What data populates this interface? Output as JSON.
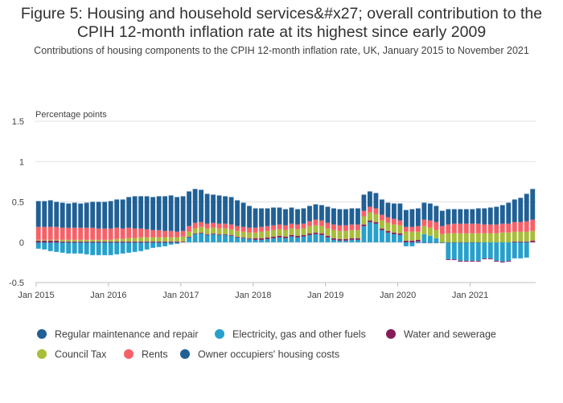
{
  "title": "Figure 5: Housing and household services&#x27; overall contribution to the CPIH 12-month inflation rate at its highest since early 2009",
  "subtitle": "Contributions of housing components to the CPIH 12-month inflation rate, UK, January 2015 to November 2021",
  "chart_data": {
    "type": "bar",
    "stacked": true,
    "ylabel": "Percentage points",
    "ylim": [
      -0.5,
      1.5
    ],
    "yticks": [
      -0.5,
      0,
      0.5,
      1,
      1.5
    ],
    "ytick_labels": [
      "-0.5",
      "0",
      "0.5",
      "1",
      "1.5"
    ],
    "xtick_labels": [
      "Jan 2015",
      "Jan 2016",
      "Jan 2017",
      "Jan 2018",
      "Jan 2019",
      "Jan 2020",
      "Jan 2021"
    ],
    "xtick_indices": [
      0,
      12,
      24,
      36,
      48,
      60,
      72
    ],
    "grid": true,
    "legend_position": "bottom",
    "start": "2015-01",
    "period_count": 83,
    "series": [
      {
        "name": "Regular maintenance and repair",
        "color": "#206095",
        "values": [
          -0.01,
          -0.01,
          -0.01,
          -0.01,
          -0.01,
          -0.01,
          -0.01,
          -0.01,
          -0.01,
          -0.01,
          -0.01,
          -0.01,
          -0.01,
          -0.01,
          -0.01,
          -0.01,
          -0.01,
          -0.01,
          -0.01,
          -0.01,
          -0.01,
          -0.01,
          -0.01,
          -0.01,
          0.0,
          0.0,
          0.0,
          0.0,
          0.0,
          0.0,
          0.0,
          0.0,
          0.0,
          0.0,
          0.0,
          0.0,
          0.0,
          0.0,
          0.0,
          0.0,
          0.0,
          0.0,
          0.0,
          0.0,
          0.0,
          0.0,
          0.0,
          0.0,
          0.0,
          0.0,
          0.0,
          0.0,
          0.0,
          0.0,
          0.0,
          0.0,
          0.0,
          0.0,
          0.0,
          0.0,
          0.0,
          0.0,
          0.0,
          -0.01,
          -0.01,
          -0.01,
          -0.01,
          -0.01,
          -0.01,
          -0.01,
          -0.01,
          -0.01,
          -0.01,
          -0.01,
          0.0,
          0.0,
          0.0,
          0.0,
          0.0,
          0.0,
          0.0,
          0.0,
          0.0
        ]
      },
      {
        "name": "Electricity, gas and other fuels",
        "color": "#27a0cc",
        "values": [
          -0.07,
          -0.08,
          -0.1,
          -0.11,
          -0.12,
          -0.13,
          -0.13,
          -0.13,
          -0.14,
          -0.15,
          -0.15,
          -0.15,
          -0.15,
          -0.14,
          -0.13,
          -0.12,
          -0.11,
          -0.1,
          -0.08,
          -0.06,
          -0.05,
          -0.04,
          -0.02,
          -0.01,
          0.0,
          0.06,
          0.1,
          0.11,
          0.09,
          0.1,
          0.09,
          0.09,
          0.08,
          0.06,
          0.05,
          0.04,
          0.03,
          0.03,
          0.04,
          0.05,
          0.06,
          0.05,
          0.07,
          0.06,
          0.07,
          0.09,
          0.1,
          0.09,
          0.06,
          0.03,
          0.02,
          0.02,
          0.03,
          0.03,
          0.2,
          0.25,
          0.23,
          0.15,
          0.12,
          0.1,
          0.09,
          -0.05,
          -0.05,
          0.01,
          0.1,
          0.08,
          0.05,
          0.0,
          -0.2,
          -0.2,
          -0.22,
          -0.22,
          -0.22,
          -0.22,
          -0.2,
          -0.2,
          -0.23,
          -0.24,
          -0.23,
          -0.2,
          -0.2,
          -0.19,
          0.0
        ]
      },
      {
        "name": "Water and sewerage",
        "color": "#871a5b",
        "values": [
          0.02,
          0.02,
          0.02,
          0.02,
          0.01,
          0.01,
          0.01,
          0.01,
          0.01,
          0.01,
          0.01,
          0.01,
          0.01,
          0.01,
          0.01,
          0.01,
          0.01,
          0.01,
          0.01,
          0.01,
          0.01,
          0.01,
          0.01,
          0.01,
          0.01,
          0.01,
          0.01,
          0.01,
          0.01,
          0.01,
          0.01,
          0.01,
          0.01,
          0.01,
          0.01,
          0.01,
          0.02,
          0.02,
          0.02,
          0.02,
          0.02,
          0.02,
          0.02,
          0.02,
          0.02,
          0.02,
          0.02,
          0.02,
          0.02,
          0.02,
          0.02,
          0.02,
          0.02,
          0.02,
          0.02,
          0.02,
          0.02,
          0.02,
          0.02,
          0.02,
          0.02,
          0.02,
          0.02,
          0.02,
          0.0,
          0.0,
          0.0,
          0.0,
          -0.01,
          -0.01,
          -0.01,
          -0.01,
          -0.01,
          -0.01,
          -0.01,
          -0.01,
          -0.01,
          -0.01,
          -0.01,
          0.01,
          0.01,
          0.01,
          0.02
        ]
      },
      {
        "name": "Council Tax",
        "color": "#a8bd3a",
        "values": [
          0.01,
          0.01,
          0.01,
          0.01,
          0.02,
          0.02,
          0.02,
          0.02,
          0.02,
          0.02,
          0.02,
          0.02,
          0.02,
          0.03,
          0.03,
          0.04,
          0.04,
          0.05,
          0.05,
          0.05,
          0.05,
          0.05,
          0.05,
          0.05,
          0.06,
          0.06,
          0.06,
          0.07,
          0.07,
          0.07,
          0.07,
          0.07,
          0.07,
          0.07,
          0.07,
          0.07,
          0.07,
          0.08,
          0.08,
          0.08,
          0.08,
          0.08,
          0.08,
          0.08,
          0.08,
          0.09,
          0.09,
          0.09,
          0.09,
          0.1,
          0.1,
          0.1,
          0.1,
          0.1,
          0.1,
          0.1,
          0.1,
          0.1,
          0.1,
          0.1,
          0.1,
          0.11,
          0.11,
          0.1,
          0.1,
          0.1,
          0.1,
          0.1,
          0.11,
          0.11,
          0.11,
          0.11,
          0.11,
          0.11,
          0.11,
          0.11,
          0.11,
          0.12,
          0.12,
          0.12,
          0.12,
          0.12,
          0.12
        ]
      },
      {
        "name": "Rents",
        "color": "#f66068",
        "values": [
          0.16,
          0.16,
          0.16,
          0.16,
          0.15,
          0.15,
          0.15,
          0.15,
          0.15,
          0.15,
          0.14,
          0.14,
          0.14,
          0.14,
          0.13,
          0.13,
          0.12,
          0.11,
          0.1,
          0.09,
          0.09,
          0.08,
          0.08,
          0.07,
          0.07,
          0.07,
          0.07,
          0.06,
          0.06,
          0.06,
          0.06,
          0.06,
          0.06,
          0.06,
          0.06,
          0.06,
          0.06,
          0.06,
          0.06,
          0.06,
          0.06,
          0.06,
          0.06,
          0.06,
          0.06,
          0.06,
          0.07,
          0.07,
          0.07,
          0.07,
          0.07,
          0.07,
          0.07,
          0.07,
          0.07,
          0.07,
          0.07,
          0.07,
          0.07,
          0.07,
          0.06,
          0.06,
          0.06,
          0.07,
          0.08,
          0.09,
          0.1,
          0.1,
          0.11,
          0.12,
          0.12,
          0.12,
          0.12,
          0.12,
          0.11,
          0.11,
          0.11,
          0.11,
          0.11,
          0.12,
          0.12,
          0.13,
          0.14
        ]
      },
      {
        "name": "Owner occupiers' housing costs",
        "color": "#206095",
        "values": [
          0.32,
          0.32,
          0.33,
          0.31,
          0.31,
          0.3,
          0.31,
          0.3,
          0.31,
          0.32,
          0.33,
          0.33,
          0.34,
          0.35,
          0.36,
          0.38,
          0.4,
          0.4,
          0.41,
          0.41,
          0.42,
          0.43,
          0.44,
          0.43,
          0.43,
          0.43,
          0.42,
          0.4,
          0.37,
          0.35,
          0.35,
          0.34,
          0.34,
          0.32,
          0.3,
          0.27,
          0.24,
          0.23,
          0.22,
          0.22,
          0.21,
          0.2,
          0.2,
          0.19,
          0.19,
          0.19,
          0.19,
          0.19,
          0.2,
          0.2,
          0.2,
          0.2,
          0.2,
          0.2,
          0.2,
          0.19,
          0.19,
          0.19,
          0.18,
          0.19,
          0.21,
          0.21,
          0.22,
          0.22,
          0.21,
          0.21,
          0.2,
          0.19,
          0.19,
          0.18,
          0.18,
          0.18,
          0.18,
          0.19,
          0.2,
          0.21,
          0.22,
          0.23,
          0.26,
          0.28,
          0.3,
          0.34,
          0.38
        ]
      }
    ]
  }
}
